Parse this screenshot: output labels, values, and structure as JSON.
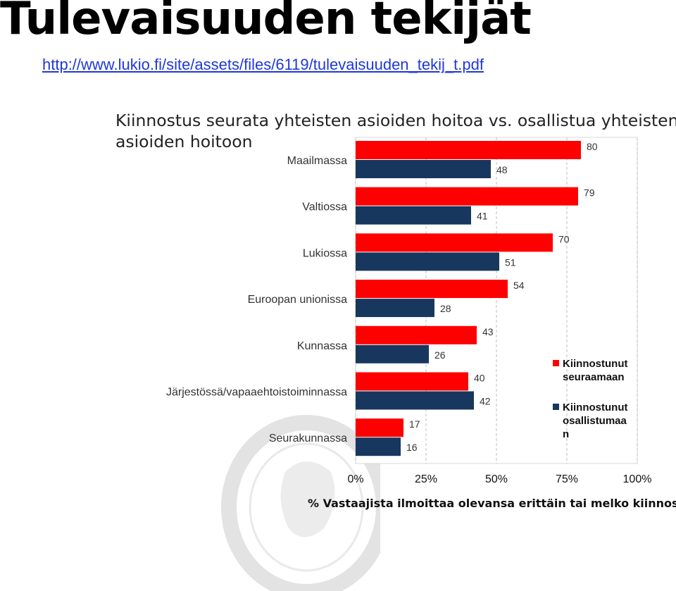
{
  "header": {
    "title": "Tulevaisuuden tekijät",
    "link": "http://www.lukio.fi/site/assets/files/6119/tulevaisuuden_tekij_t.pdf"
  },
  "chart_data": {
    "type": "bar",
    "orientation": "horizontal",
    "title": "Kiinnostus seurata yhteisten asioiden hoitoa vs. osallistua yhteisten asioiden hoitoon",
    "xlabel": "% Vastaajista ilmoittaa olevansa erittäin tai melko kiinnostunut",
    "ylabel": "",
    "xlim": [
      0,
      100
    ],
    "xticks": [
      "0%",
      "25%",
      "50%",
      "75%",
      "100%"
    ],
    "grid": true,
    "legend_position": "right",
    "categories": [
      "Maailmassa",
      "Valtiossa",
      "Lukiossa",
      "Euroopan unionissa",
      "Kunnassa",
      "Järjestössä/vapaaehtoistoiminnassa",
      "Seurakunnassa"
    ],
    "series": [
      {
        "name": "Kiinnostunut seuraamaan",
        "color": "#ff0000",
        "values": [
          80,
          79,
          70,
          54,
          43,
          40,
          17
        ]
      },
      {
        "name": "Kiinnostunut osallistumaa n",
        "color": "#17375e",
        "values": [
          48,
          41,
          51,
          28,
          26,
          42,
          16
        ]
      }
    ],
    "legend_lines": [
      [
        "Kiinnostunut",
        "seuraamaan"
      ],
      [
        "Kiinnostunut",
        "osallistumaa",
        "n"
      ]
    ]
  }
}
